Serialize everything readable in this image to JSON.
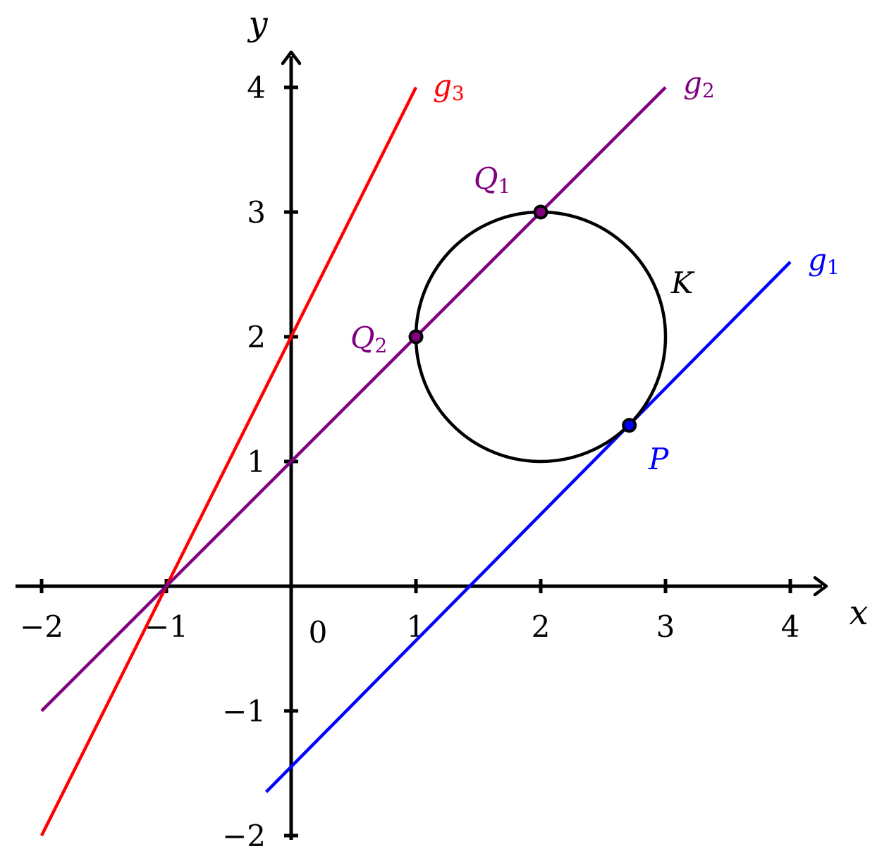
{
  "axes": {
    "x_label": "x",
    "y_label": "y",
    "origin_label": "0",
    "x_ticks": [
      {
        "value": -2,
        "label": "−2"
      },
      {
        "value": -1,
        "label": "−1"
      },
      {
        "value": 1,
        "label": "1"
      },
      {
        "value": 2,
        "label": "2"
      },
      {
        "value": 3,
        "label": "3"
      },
      {
        "value": 4,
        "label": "4"
      }
    ],
    "y_ticks": [
      {
        "value": -2,
        "label": "−2"
      },
      {
        "value": -1,
        "label": "−1"
      },
      {
        "value": 1,
        "label": "1"
      },
      {
        "value": 2,
        "label": "2"
      },
      {
        "value": 3,
        "label": "3"
      },
      {
        "value": 4,
        "label": "4"
      }
    ]
  },
  "lines": {
    "g1": {
      "name": "g",
      "sub": "1",
      "color": "#0000ff",
      "from": [
        -0.2,
        -1.65
      ],
      "to": [
        4.0,
        2.6
      ]
    },
    "g2": {
      "name": "g",
      "sub": "2",
      "color": "#800080",
      "from": [
        -2.0,
        -1.0
      ],
      "to": [
        3.0,
        4.0
      ]
    },
    "g3": {
      "name": "g",
      "sub": "3",
      "color": "#ff0000",
      "from": [
        -2.0,
        -2.0
      ],
      "to": [
        1.0,
        4.0
      ]
    }
  },
  "circle": {
    "name": "K",
    "color": "#000000",
    "center": [
      2.0,
      2.0
    ],
    "radius": 1.0
  },
  "points": {
    "P": {
      "name": "P",
      "sub": "",
      "color": "#0000ff",
      "x": 2.71,
      "y": 1.29
    },
    "Q1": {
      "name": "Q",
      "sub": "1",
      "color": "#800080",
      "x": 2.0,
      "y": 3.0
    },
    "Q2": {
      "name": "Q",
      "sub": "2",
      "color": "#800080",
      "x": 1.0,
      "y": 2.0
    }
  }
}
